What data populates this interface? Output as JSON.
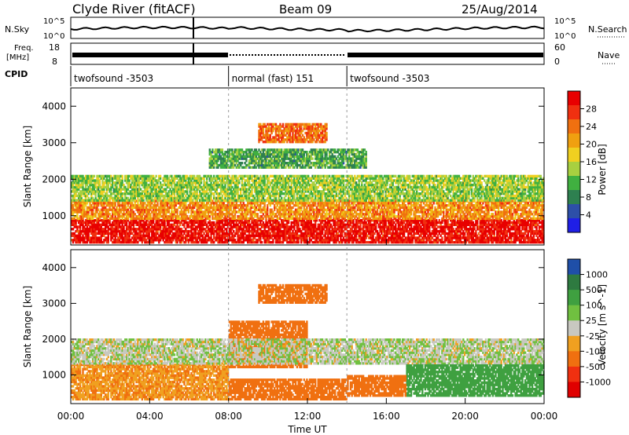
{
  "header": {
    "station": "Clyde River (fitACF)",
    "beam": "Beam 09",
    "date": "25/Aug/2014"
  },
  "summary_panels": {
    "nsky_label": "N.Sky",
    "nsky_top": "10^5",
    "nsky_bottom": "10^0",
    "nsearch_label": "N.Search",
    "nsearch_top": "10^5",
    "nsearch_bottom": "10^0",
    "freq_label_1": "Freq.",
    "freq_label_2": "[MHz]",
    "freq_top": "18",
    "freq_bottom": "8",
    "nave_label": "Nave",
    "nave_top": "60",
    "nave_bottom": "0",
    "cpid_label": "CPID",
    "cpid_segments": [
      {
        "label": "twofsound -3503",
        "start_h": 0,
        "end_h": 8
      },
      {
        "label": "normal (fast) 151",
        "start_h": 8,
        "end_h": 14
      },
      {
        "label": "twofsound -3503",
        "start_h": 14,
        "end_h": 24
      }
    ]
  },
  "chart_data": [
    {
      "type": "heatmap",
      "name": "Power",
      "ylabel": "Slant Range [km]",
      "xlabel": "Time UT",
      "xlim": [
        0,
        24
      ],
      "ylim": [
        200,
        4500
      ],
      "yticks": [
        1000,
        2000,
        3000,
        4000
      ],
      "colorbar": {
        "label": "Power [dB]",
        "ticks": [
          "4",
          "8",
          "12",
          "16",
          "20",
          "24",
          "28"
        ],
        "range": [
          0,
          30
        ],
        "colors": [
          "#1f1fe6",
          "#2d4fa8",
          "#2e8050",
          "#40b040",
          "#a8d040",
          "#f0d020",
          "#f0a010",
          "#f07010",
          "#f03010",
          "#e80000"
        ]
      },
      "bands": [
        {
          "start_h": 0,
          "end_h": 24,
          "range_lo": 250,
          "range_hi": 900,
          "value": 27
        },
        {
          "start_h": 0,
          "end_h": 24,
          "range_lo": 900,
          "range_hi": 1400,
          "value": 20
        },
        {
          "start_h": 0,
          "end_h": 24,
          "range_lo": 1400,
          "range_hi": 2100,
          "value": 12
        },
        {
          "start_h": 9.5,
          "end_h": 13,
          "range_lo": 3000,
          "range_hi": 3500,
          "value": 22
        },
        {
          "start_h": 7,
          "end_h": 15,
          "range_lo": 2300,
          "range_hi": 2800,
          "value": 9
        }
      ]
    },
    {
      "type": "heatmap",
      "name": "Velocity",
      "ylabel": "Slant Range [km]",
      "xlabel": "Time UT",
      "xlim": [
        0,
        24
      ],
      "ylim": [
        200,
        4500
      ],
      "yticks": [
        1000,
        2000,
        3000,
        4000
      ],
      "xticks": [
        "00:00",
        "04:00",
        "08:00",
        "12:00",
        "16:00",
        "20:00",
        "00:00"
      ],
      "colorbar": {
        "label": "Velocity [m s^-1]",
        "ticks": [
          "1000",
          "500",
          "100",
          "25",
          "-25",
          "-100",
          "-500",
          "-1000"
        ],
        "colors": [
          "#1f4fa8",
          "#2e7a40",
          "#3fa040",
          "#70c040",
          "#c8c8c0",
          "#f0a020",
          "#f07010",
          "#f03010",
          "#e00000"
        ]
      },
      "bands": [
        {
          "start_h": 0,
          "end_h": 8,
          "range_lo": 300,
          "range_hi": 1300,
          "value": -100
        },
        {
          "start_h": 8,
          "end_h": 14,
          "range_lo": 300,
          "range_hi": 900,
          "value": -300
        },
        {
          "start_h": 8,
          "end_h": 12,
          "range_lo": 1200,
          "range_hi": 2500,
          "value": -200
        },
        {
          "start_h": 9.5,
          "end_h": 13,
          "range_lo": 3000,
          "range_hi": 3500,
          "value": -200
        },
        {
          "start_h": 0,
          "end_h": 24,
          "range_lo": 1300,
          "range_hi": 2000,
          "value": 0
        },
        {
          "start_h": 17,
          "end_h": 24,
          "range_lo": 400,
          "range_hi": 1300,
          "value": 150
        },
        {
          "start_h": 14,
          "end_h": 17,
          "range_lo": 400,
          "range_hi": 1000,
          "value": -200
        }
      ]
    }
  ]
}
